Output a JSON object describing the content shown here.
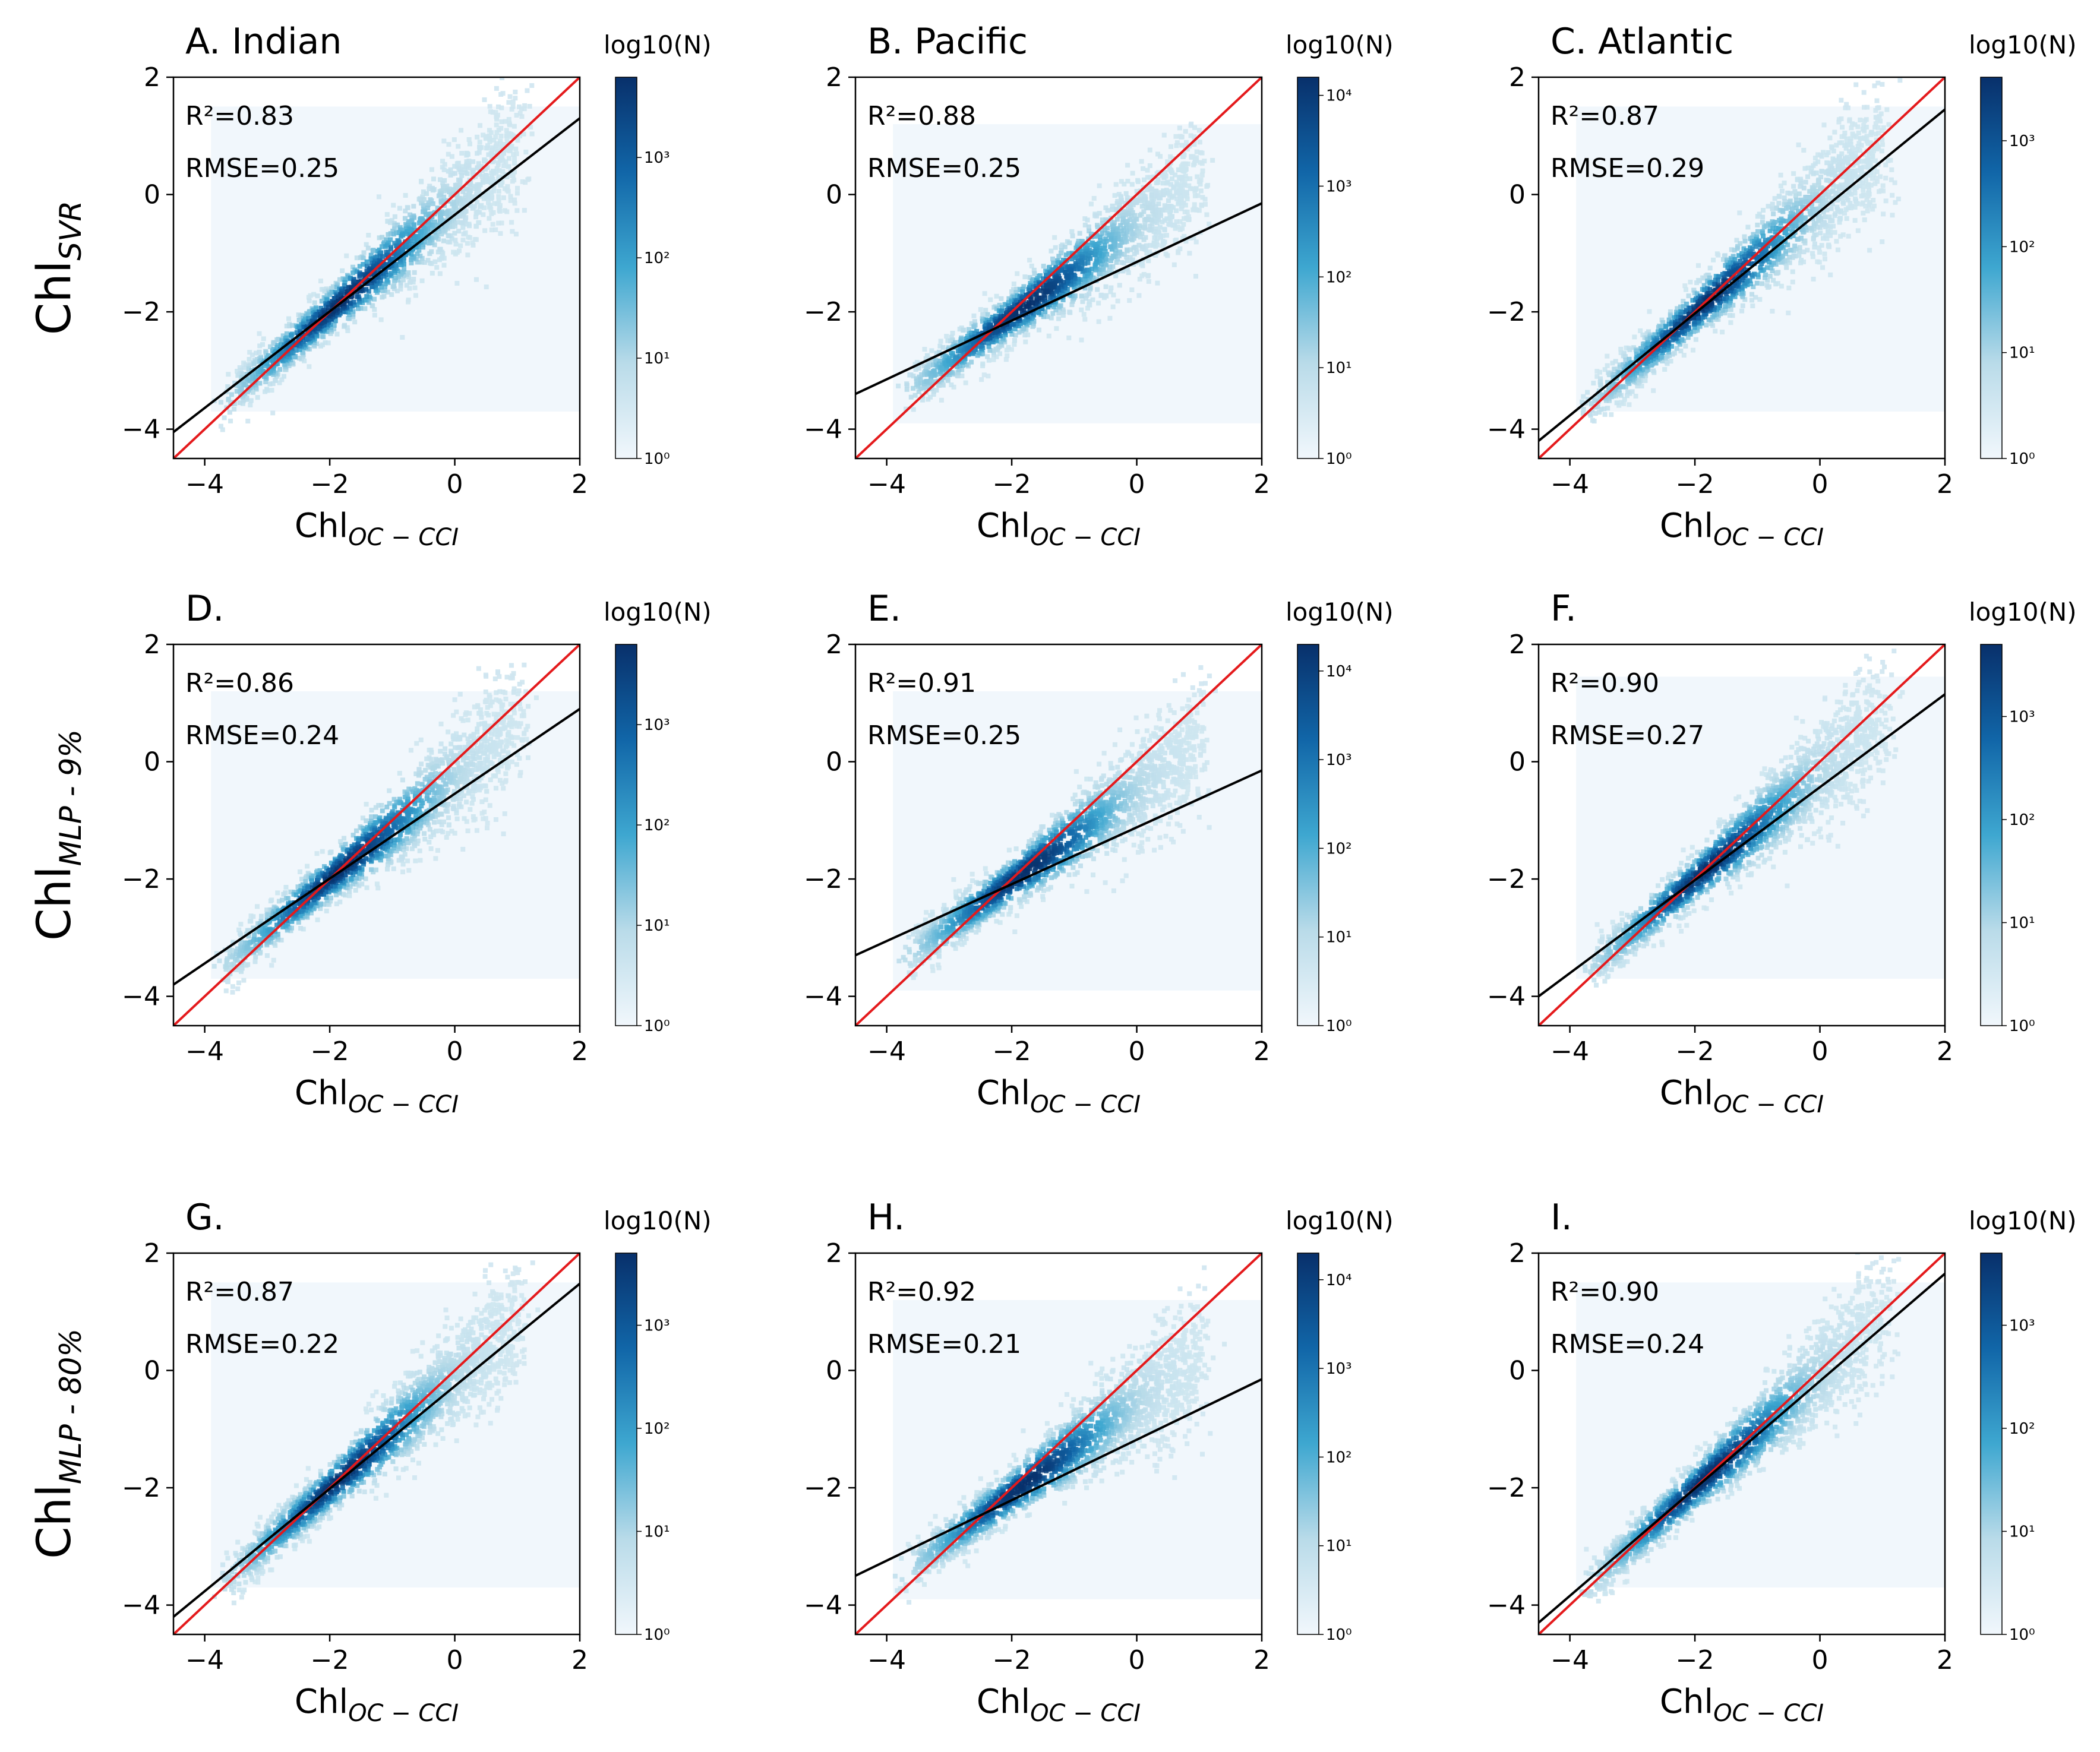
{
  "figure": {
    "colorbar_title": "log10(N)",
    "x_axis_label": {
      "main": "Chl",
      "sub": "OC − CCI"
    },
    "row_labels": [
      {
        "main": "Chl",
        "sub": "SVR"
      },
      {
        "main": "Chl",
        "sub": "MLP - 9%"
      },
      {
        "main": "Chl",
        "sub": "MLP - 80%"
      }
    ],
    "colors": {
      "cmap_low": "#f1f7fc",
      "cmap_mid": "#1b9bc4",
      "cmap_high": "#08306b",
      "one_to_one": "#e41a1c",
      "fit_line": "#000000"
    }
  },
  "chart_data": [
    {
      "type": "scatter",
      "subtype": "hexbin-density",
      "title": "A. Indian",
      "xlabel": "Chl OC−CCI",
      "ylabel": "Chl SVR",
      "xlim": [
        -4.5,
        2
      ],
      "ylim": [
        -4.5,
        2
      ],
      "xticks": [
        -4,
        -2,
        0,
        2
      ],
      "yticks": [
        -4,
        -2,
        0,
        2
      ],
      "xtick_labels": [
        "−4",
        "−2",
        "0",
        "2"
      ],
      "ytick_labels": [
        "−4",
        "−2",
        "0",
        "2"
      ],
      "stats": {
        "r2": "R²=0.83",
        "rmse": "RMSE=0.25"
      },
      "fit_line": {
        "x": [
          -4.5,
          2
        ],
        "y": [
          -4.05,
          1.3
        ]
      },
      "one_to_one": {
        "x": [
          -4.5,
          2
        ],
        "y": [
          -4.5,
          2
        ]
      },
      "colorbar": {
        "label": "log10(N)",
        "ticks": [
          "10⁰",
          "10¹",
          "10²",
          "10³"
        ],
        "max_exp": 3.8
      }
    },
    {
      "type": "scatter",
      "subtype": "hexbin-density",
      "title": "B. Pacific",
      "xlabel": "Chl OC−CCI",
      "ylabel": "Chl SVR",
      "xlim": [
        -4.5,
        2
      ],
      "ylim": [
        -4.5,
        2
      ],
      "xticks": [
        -4,
        -2,
        0,
        2
      ],
      "yticks": [
        -4,
        -2,
        0,
        2
      ],
      "xtick_labels": [
        "−4",
        "−2",
        "0",
        "2"
      ],
      "ytick_labels": [
        "−4",
        "−2",
        "0",
        "2"
      ],
      "stats": {
        "r2": "R²=0.88",
        "rmse": "RMSE=0.25"
      },
      "fit_line": {
        "x": [
          -4.5,
          2
        ],
        "y": [
          -3.4,
          -0.15
        ]
      },
      "one_to_one": {
        "x": [
          -4.5,
          2
        ],
        "y": [
          -4.5,
          2
        ]
      },
      "colorbar": {
        "label": "log10(N)",
        "ticks": [
          "10⁰",
          "10¹",
          "10²",
          "10³",
          "10⁴"
        ],
        "max_exp": 4.2
      }
    },
    {
      "type": "scatter",
      "subtype": "hexbin-density",
      "title": "C. Atlantic",
      "xlabel": "Chl OC−CCI",
      "ylabel": "Chl SVR",
      "xlim": [
        -4.5,
        2
      ],
      "ylim": [
        -4.5,
        2
      ],
      "xticks": [
        -4,
        -2,
        0,
        2
      ],
      "yticks": [
        -4,
        -2,
        0,
        2
      ],
      "xtick_labels": [
        "−4",
        "−2",
        "0",
        "2"
      ],
      "ytick_labels": [
        "−4",
        "−2",
        "0",
        "2"
      ],
      "stats": {
        "r2": "R²=0.87",
        "rmse": "RMSE=0.29"
      },
      "fit_line": {
        "x": [
          -4.5,
          2
        ],
        "y": [
          -4.2,
          1.45
        ]
      },
      "one_to_one": {
        "x": [
          -4.5,
          2
        ],
        "y": [
          -4.5,
          2
        ]
      },
      "colorbar": {
        "label": "log10(N)",
        "ticks": [
          "10⁰",
          "10¹",
          "10²",
          "10³"
        ],
        "max_exp": 3.6
      }
    },
    {
      "type": "scatter",
      "subtype": "hexbin-density",
      "title": "D.",
      "xlabel": "Chl OC−CCI",
      "ylabel": "Chl MLP - 9%",
      "xlim": [
        -4.5,
        2
      ],
      "ylim": [
        -4.5,
        2
      ],
      "xticks": [
        -4,
        -2,
        0,
        2
      ],
      "yticks": [
        -4,
        -2,
        0,
        2
      ],
      "xtick_labels": [
        "−4",
        "−2",
        "0",
        "2"
      ],
      "ytick_labels": [
        "−4",
        "−2",
        "0",
        "2"
      ],
      "stats": {
        "r2": "R²=0.86",
        "rmse": "RMSE=0.24"
      },
      "fit_line": {
        "x": [
          -4.5,
          2
        ],
        "y": [
          -3.8,
          0.9
        ]
      },
      "one_to_one": {
        "x": [
          -4.5,
          2
        ],
        "y": [
          -4.5,
          2
        ]
      },
      "colorbar": {
        "label": "log10(N)",
        "ticks": [
          "10⁰",
          "10¹",
          "10²",
          "10³"
        ],
        "max_exp": 3.8
      }
    },
    {
      "type": "scatter",
      "subtype": "hexbin-density",
      "title": "E.",
      "xlabel": "Chl OC−CCI",
      "ylabel": "Chl MLP - 9%",
      "xlim": [
        -4.5,
        2
      ],
      "ylim": [
        -4.5,
        2
      ],
      "xticks": [
        -4,
        -2,
        0,
        2
      ],
      "yticks": [
        -4,
        -2,
        0,
        2
      ],
      "xtick_labels": [
        "−4",
        "−2",
        "0",
        "2"
      ],
      "ytick_labels": [
        "−4",
        "−2",
        "0",
        "2"
      ],
      "stats": {
        "r2": "R²=0.91",
        "rmse": "RMSE=0.25"
      },
      "fit_line": {
        "x": [
          -4.5,
          2
        ],
        "y": [
          -3.3,
          -0.15
        ]
      },
      "one_to_one": {
        "x": [
          -4.5,
          2
        ],
        "y": [
          -4.5,
          2
        ]
      },
      "colorbar": {
        "label": "log10(N)",
        "ticks": [
          "10⁰",
          "10¹",
          "10²",
          "10³",
          "10⁴"
        ],
        "max_exp": 4.3
      }
    },
    {
      "type": "scatter",
      "subtype": "hexbin-density",
      "title": "F.",
      "xlabel": "Chl OC−CCI",
      "ylabel": "Chl MLP - 9%",
      "xlim": [
        -4.5,
        2
      ],
      "ylim": [
        -4.5,
        2
      ],
      "xticks": [
        -4,
        -2,
        0,
        2
      ],
      "yticks": [
        -4,
        -2,
        0,
        2
      ],
      "xtick_labels": [
        "−4",
        "−2",
        "0",
        "2"
      ],
      "ytick_labels": [
        "−4",
        "−2",
        "0",
        "2"
      ],
      "stats": {
        "r2": "R²=0.90",
        "rmse": "RMSE=0.27"
      },
      "fit_line": {
        "x": [
          -4.5,
          2
        ],
        "y": [
          -4.0,
          1.15
        ]
      },
      "one_to_one": {
        "x": [
          -4.5,
          2
        ],
        "y": [
          -4.5,
          2
        ]
      },
      "colorbar": {
        "label": "log10(N)",
        "ticks": [
          "10⁰",
          "10¹",
          "10²",
          "10³"
        ],
        "max_exp": 3.7
      }
    },
    {
      "type": "scatter",
      "subtype": "hexbin-density",
      "title": "G.",
      "xlabel": "Chl OC−CCI",
      "ylabel": "Chl MLP - 80%",
      "xlim": [
        -4.5,
        2
      ],
      "ylim": [
        -4.5,
        2
      ],
      "xticks": [
        -4,
        -2,
        0,
        2
      ],
      "yticks": [
        -4,
        -2,
        0,
        2
      ],
      "xtick_labels": [
        "−4",
        "−2",
        "0",
        "2"
      ],
      "ytick_labels": [
        "−4",
        "−2",
        "0",
        "2"
      ],
      "stats": {
        "r2": "R²=0.87",
        "rmse": "RMSE=0.22"
      },
      "fit_line": {
        "x": [
          -4.5,
          2
        ],
        "y": [
          -4.2,
          1.48
        ]
      },
      "one_to_one": {
        "x": [
          -4.5,
          2
        ],
        "y": [
          -4.5,
          2
        ]
      },
      "colorbar": {
        "label": "log10(N)",
        "ticks": [
          "10⁰",
          "10¹",
          "10²",
          "10³"
        ],
        "max_exp": 3.7
      }
    },
    {
      "type": "scatter",
      "subtype": "hexbin-density",
      "title": "H.",
      "xlabel": "Chl OC−CCI",
      "ylabel": "Chl MLP - 80%",
      "xlim": [
        -4.5,
        2
      ],
      "ylim": [
        -4.5,
        2
      ],
      "xticks": [
        -4,
        -2,
        0,
        2
      ],
      "yticks": [
        -4,
        -2,
        0,
        2
      ],
      "xtick_labels": [
        "−4",
        "−2",
        "0",
        "2"
      ],
      "ytick_labels": [
        "−4",
        "−2",
        "0",
        "2"
      ],
      "stats": {
        "r2": "R²=0.92",
        "rmse": "RMSE=0.21"
      },
      "fit_line": {
        "x": [
          -4.5,
          2
        ],
        "y": [
          -3.5,
          -0.15
        ]
      },
      "one_to_one": {
        "x": [
          -4.5,
          2
        ],
        "y": [
          -4.5,
          2
        ]
      },
      "colorbar": {
        "label": "log10(N)",
        "ticks": [
          "10⁰",
          "10¹",
          "10²",
          "10³",
          "10⁴"
        ],
        "max_exp": 4.3
      }
    },
    {
      "type": "scatter",
      "subtype": "hexbin-density",
      "title": "I.",
      "xlabel": "Chl OC−CCI",
      "ylabel": "Chl MLP - 80%",
      "xlim": [
        -4.5,
        2
      ],
      "ylim": [
        -4.5,
        2
      ],
      "xticks": [
        -4,
        -2,
        0,
        2
      ],
      "yticks": [
        -4,
        -2,
        0,
        2
      ],
      "xtick_labels": [
        "−4",
        "−2",
        "0",
        "2"
      ],
      "ytick_labels": [
        "−4",
        "−2",
        "0",
        "2"
      ],
      "stats": {
        "r2": "R²=0.90",
        "rmse": "RMSE=0.24"
      },
      "fit_line": {
        "x": [
          -4.5,
          2
        ],
        "y": [
          -4.3,
          1.65
        ]
      },
      "one_to_one": {
        "x": [
          -4.5,
          2
        ],
        "y": [
          -4.5,
          2
        ]
      },
      "colorbar": {
        "label": "log10(N)",
        "ticks": [
          "10⁰",
          "10¹",
          "10²",
          "10³"
        ],
        "max_exp": 3.7
      }
    }
  ]
}
